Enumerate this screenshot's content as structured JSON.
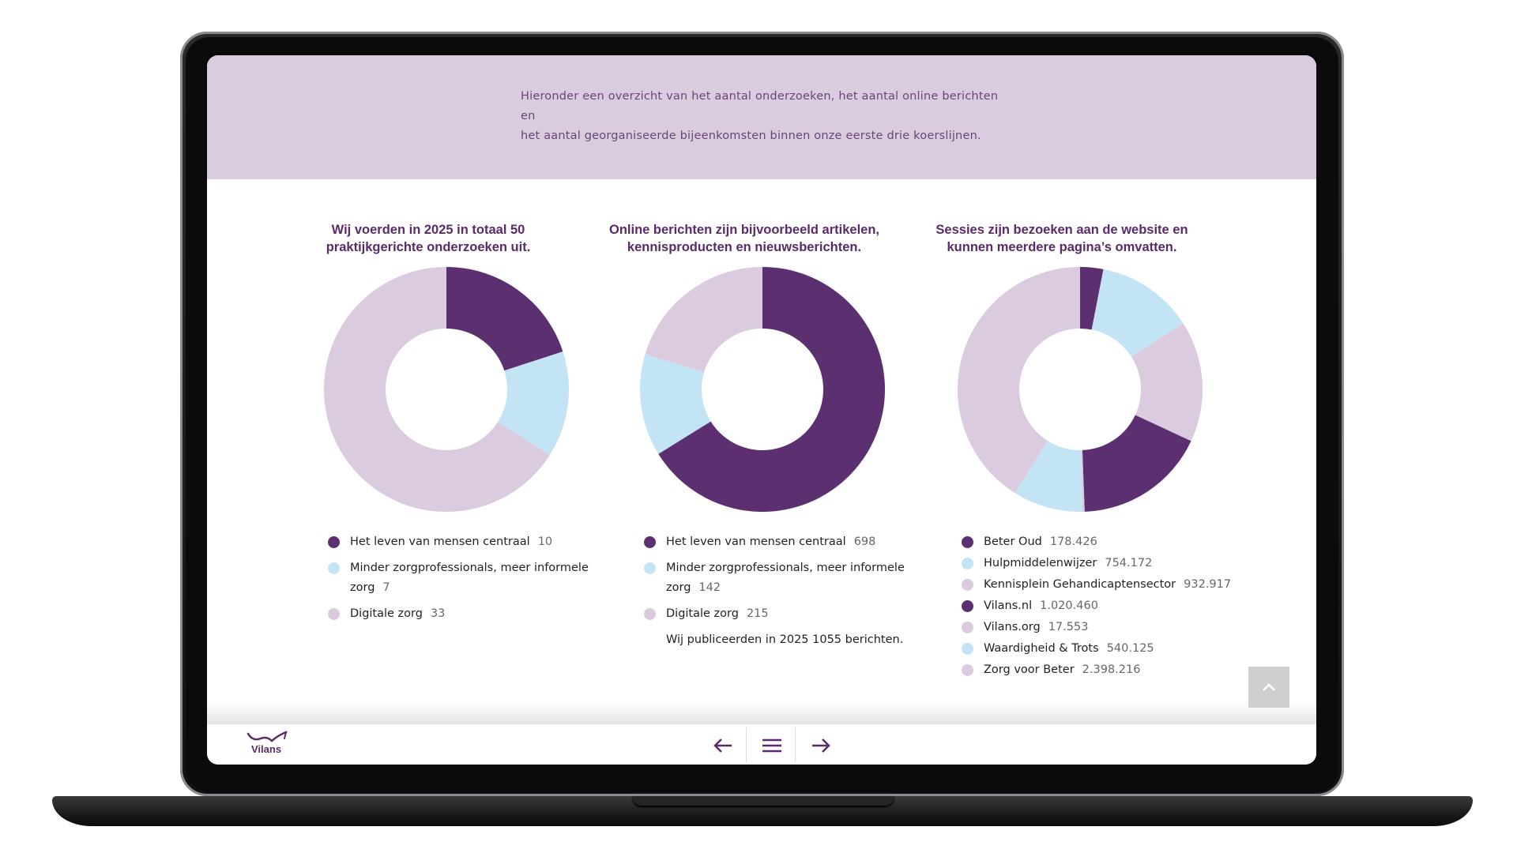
{
  "intro": {
    "line1": "Hieronder een overzicht van het aantal onderzoeken, het aantal online berichten en",
    "line2": "het aantal georganiseerde bijeenkomsten binnen onze eerste drie koerslijnen."
  },
  "colors": {
    "dark_purple": "#5c3070",
    "light_blue": "#c3e4f5",
    "light_lilac": "#dacbde",
    "band": "#d9ccdf",
    "title": "#5a2a6a"
  },
  "columns": [
    {
      "title_line1": "Wij voerden in 2025 in totaal 50",
      "title_line2": "praktijkgerichte onderzoeken uit.",
      "legend": [
        {
          "label": "Het leven van mensen centraal",
          "value": "10",
          "color": "#5c3070"
        },
        {
          "label": "Minder zorgprofessionals, meer informele zorg",
          "value": "7",
          "color": "#c3e4f5"
        },
        {
          "label": "Digitale zorg",
          "value": "33",
          "color": "#dacbde"
        }
      ],
      "note": ""
    },
    {
      "title_line1": "Online berichten zijn bijvoorbeeld artikelen,",
      "title_line2": "kennisproducten en nieuwsberichten.",
      "legend": [
        {
          "label": "Het leven van mensen centraal",
          "value": "698",
          "color": "#5c3070"
        },
        {
          "label": "Minder zorgprofessionals, meer informele zorg",
          "value": "142",
          "color": "#c3e4f5"
        },
        {
          "label": "Digitale zorg",
          "value": "215",
          "color": "#dacbde"
        }
      ],
      "note": "Wij publiceerden in 2025 1055 berichten."
    },
    {
      "title_line1": "Sessies zijn bezoeken aan de website en",
      "title_line2": "kunnen meerdere pagina’s omvatten.",
      "legend": [
        {
          "label": "Beter Oud",
          "value": "178.426",
          "color": "#5c3070"
        },
        {
          "label": "Hulpmiddelenwijzer",
          "value": "754.172",
          "color": "#c3e4f5"
        },
        {
          "label": "Kennisplein Gehandicaptensector",
          "value": "932.917",
          "color": "#dacbde"
        },
        {
          "label": "Vilans.nl",
          "value": "1.020.460",
          "color": "#5c3070"
        },
        {
          "label": "Vilans.org",
          "value": "17.553",
          "color": "#dacbde"
        },
        {
          "label": "Waardigheid & Trots",
          "value": "540.125",
          "color": "#c3e4f5"
        },
        {
          "label": "Zorg voor Beter",
          "value": "2.398.216",
          "color": "#dacbde"
        }
      ],
      "note": ""
    }
  ],
  "chart_data": [
    {
      "type": "pie",
      "categories": [
        "Het leven van mensen centraal",
        "Minder zorgprofessionals, meer informele zorg",
        "Digitale zorg"
      ],
      "values": [
        10,
        7,
        33
      ],
      "colors": [
        "#5c3070",
        "#c3e4f5",
        "#dacbde"
      ]
    },
    {
      "type": "pie",
      "categories": [
        "Het leven van mensen centraal",
        "Minder zorgprofessionals, meer informele zorg",
        "Digitale zorg"
      ],
      "values": [
        698,
        142,
        215
      ],
      "colors": [
        "#5c3070",
        "#c3e4f5",
        "#dacbde"
      ]
    },
    {
      "type": "pie",
      "categories": [
        "Beter Oud",
        "Hulpmiddelenwijzer",
        "Kennisplein Gehandicaptensector",
        "Vilans.nl",
        "Vilans.org",
        "Waardigheid & Trots",
        "Zorg voor Beter"
      ],
      "values": [
        178426,
        754172,
        932917,
        1020460,
        17553,
        540125,
        2398216
      ],
      "colors": [
        "#5c3070",
        "#c3e4f5",
        "#dacbde",
        "#5c3070",
        "#dacbde",
        "#c3e4f5",
        "#dacbde"
      ]
    }
  ],
  "footer": {
    "logo_text": "Vilans",
    "prev_icon": "arrow-left-icon",
    "menu_icon": "hamburger-menu-icon",
    "next_icon": "arrow-right-icon",
    "top_icon": "chevron-up-icon"
  }
}
